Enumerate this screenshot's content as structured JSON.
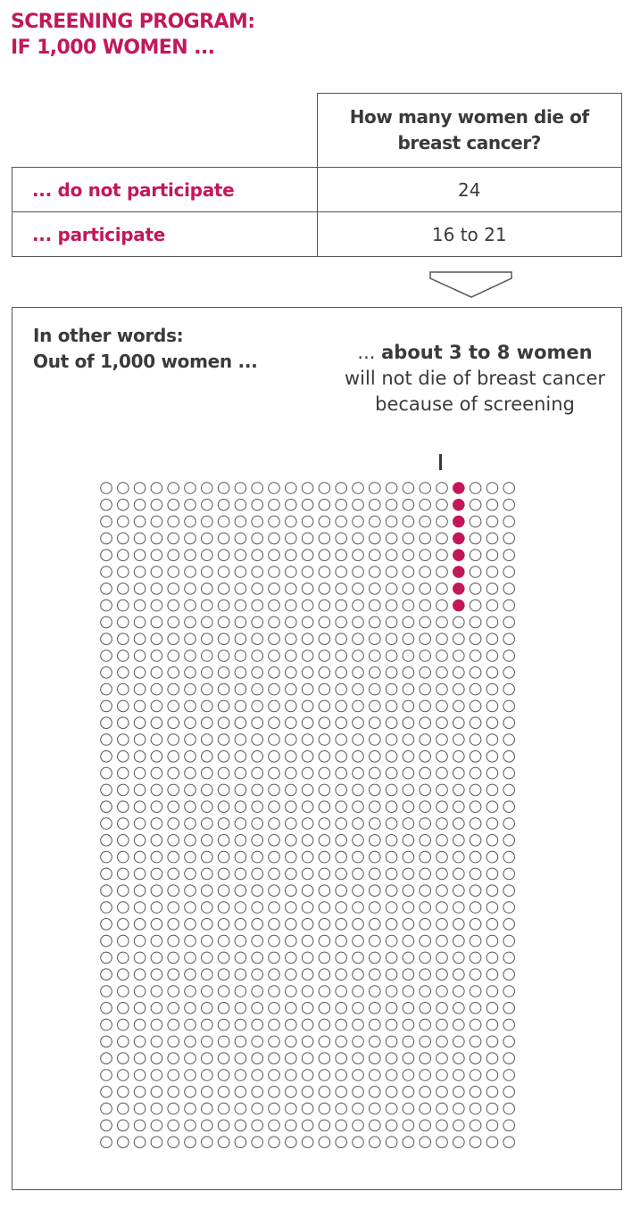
{
  "title": {
    "line1": "SCREENING PROGRAM:",
    "line2": "IF 1,000 WOMEN ..."
  },
  "table": {
    "header": "How many women die of breast cancer?",
    "rows": [
      {
        "label": "... do not participate",
        "value": "24"
      },
      {
        "label": "... participate",
        "value": "16 to 21"
      }
    ]
  },
  "explanation": {
    "line1": "In other words:",
    "line2": "Out of 1,000 women ...",
    "annotation_prefix": "... ",
    "annotation_bold": "about 3 to 8 women",
    "annotation_rest": "will not die of breast cancer because of screening"
  },
  "chart_data": {
    "type": "icon-array",
    "total": 1000,
    "columns": 25,
    "rows": 40,
    "highlighted_column": 21,
    "highlighted_count": 8,
    "highlight_color": "#c2185b",
    "outline_color": "#555555"
  },
  "colors": {
    "accent": "#c2185b",
    "text": "#3a3a3a",
    "border": "#555555"
  }
}
